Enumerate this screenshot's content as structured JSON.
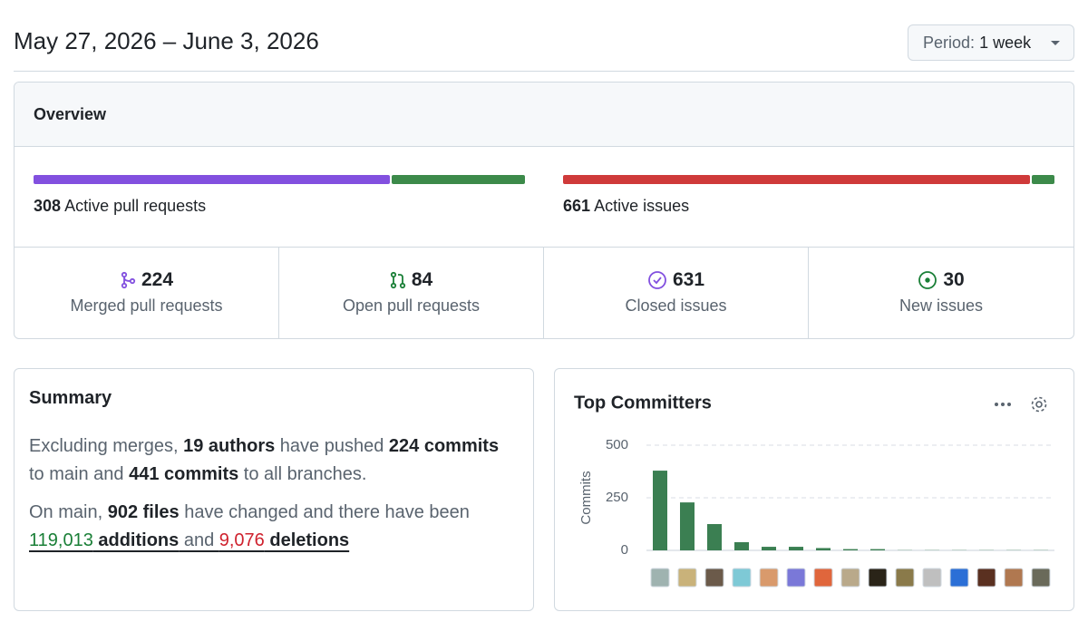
{
  "header": {
    "title": "May 27, 2026 – June 3, 2026",
    "period_label": "Period:",
    "period_value": "1 week"
  },
  "overview": {
    "title": "Overview",
    "pull_requests": {
      "active": 308,
      "active_label": "Active pull requests"
    },
    "issues": {
      "active": 661,
      "active_label": "Active issues"
    },
    "stats": [
      {
        "value": 224,
        "label": "Merged pull requests",
        "color": "#8250df"
      },
      {
        "value": 84,
        "label": "Open pull requests",
        "color": "#3c8a4a"
      },
      {
        "value": 631,
        "label": "Closed issues",
        "color": "#cf3a3a"
      },
      {
        "value": 30,
        "label": "New issues",
        "color": "#3c8a4a"
      }
    ]
  },
  "summary": {
    "title": "Summary",
    "paragraphs": [
      [
        {
          "text": "Excluding merges, "
        },
        {
          "text": "19 authors",
          "bold": true
        },
        {
          "text": " have pushed "
        },
        {
          "text": "224 commits",
          "bold": true
        },
        {
          "text": " to main and "
        },
        {
          "text": "441 commits",
          "bold": true
        },
        {
          "text": " to all branches."
        }
      ],
      [
        {
          "text": "On main, "
        },
        {
          "text": "902 files",
          "bold": true
        },
        {
          "text": " have changed and there have been "
        },
        {
          "text": "119,013",
          "color": "#1a7f37",
          "underline": true
        },
        {
          "text": " additions",
          "bold": true,
          "underline": true
        },
        {
          "text": " and ",
          "underline": true
        },
        {
          "text": "9,076",
          "color": "#cf222e",
          "underline": true
        },
        {
          "text": " deletions",
          "bold": true,
          "underline": true
        }
      ]
    ]
  },
  "top_committers": {
    "type": "bar",
    "title": "Top Committers",
    "y_label": "Commits",
    "categories": [
      null,
      null,
      null,
      null,
      null,
      null,
      null,
      null,
      null,
      null,
      null,
      null,
      null,
      null,
      null
    ],
    "values": [
      379,
      228,
      125,
      39,
      17,
      17,
      11,
      6,
      6,
      1,
      1,
      1,
      1,
      1,
      1
    ],
    "color": "#3b7f52",
    "ylim": [
      0,
      500
    ],
    "yticks": [
      0,
      250,
      500
    ],
    "grid": true
  }
}
